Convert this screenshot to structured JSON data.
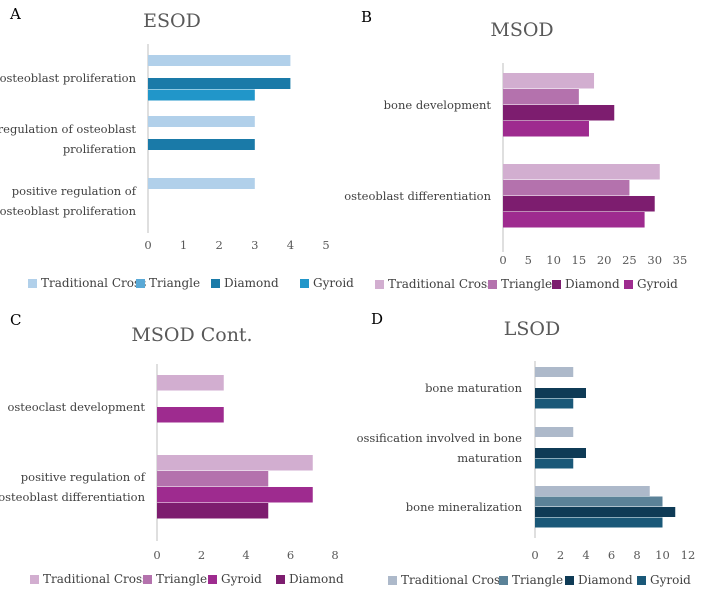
{
  "chart_data": [
    {
      "panel": "A",
      "title": "ESOD",
      "type": "bar",
      "orientation": "horizontal",
      "categories": [
        "osteoblast proliferation",
        "regulation of osteoblast proliferation",
        "positive regulation of osteoblast proliferation"
      ],
      "category_lines": [
        [
          "osteoblast proliferation"
        ],
        [
          "regulation of osteoblast",
          "proliferation"
        ],
        [
          "positive regulation of",
          "osteoblast proliferation"
        ]
      ],
      "series": [
        {
          "name": "Traditional Cross",
          "color": "#b1d0ea",
          "values": [
            4,
            3,
            3
          ]
        },
        {
          "name": "Triangle",
          "color": "#5aa9d6",
          "values": [
            null,
            null,
            null
          ]
        },
        {
          "name": "Diamond",
          "color": "#1a7aa8",
          "values": [
            4,
            3,
            null
          ]
        },
        {
          "name": "Gyroid",
          "color": "#2196c9",
          "values": [
            3,
            null,
            null
          ]
        }
      ],
      "xlim": [
        0,
        5
      ],
      "xticks": [
        "0",
        "1",
        "2",
        "3",
        "4",
        "5"
      ],
      "legend": "bottom"
    },
    {
      "panel": "B",
      "title": "MSOD",
      "type": "bar",
      "orientation": "horizontal",
      "categories": [
        "bone development",
        "osteoblast differentiation"
      ],
      "category_lines": [
        [
          "bone development"
        ],
        [
          "osteoblast differentiation"
        ]
      ],
      "series": [
        {
          "name": "Traditional Cross",
          "color": "#d2aed0",
          "values": [
            18,
            31
          ]
        },
        {
          "name": "Triangle",
          "color": "#b472ad",
          "values": [
            15,
            25
          ]
        },
        {
          "name": "Diamond",
          "color": "#7d1d6f",
          "values": [
            22,
            30
          ]
        },
        {
          "name": "Gyroid",
          "color": "#9e2b8f",
          "values": [
            17,
            28
          ]
        }
      ],
      "xlim": [
        0,
        35
      ],
      "xticks": [
        "0",
        "5",
        "10",
        "15",
        "20",
        "25",
        "30",
        "35"
      ],
      "legend": "bottom"
    },
    {
      "panel": "C",
      "title": "MSOD Cont.",
      "type": "bar",
      "orientation": "horizontal",
      "categories": [
        "osteoclast development",
        "positive regulation of osteoblast differentiation"
      ],
      "category_lines": [
        [
          "osteoclast development"
        ],
        [
          "positive regulation of",
          "osteoblast differentiation"
        ]
      ],
      "series": [
        {
          "name": "Traditional Cross",
          "color": "#d2aed0",
          "values": [
            3,
            7
          ]
        },
        {
          "name": "Triangle",
          "color": "#b472ad",
          "values": [
            null,
            5
          ]
        },
        {
          "name": "Gyroid",
          "color": "#9e2b8f",
          "values": [
            3,
            7
          ]
        },
        {
          "name": "Diamond",
          "color": "#7d1d6f",
          "values": [
            null,
            5
          ]
        }
      ],
      "xlim": [
        0,
        8
      ],
      "xticks": [
        "0",
        "2",
        "4",
        "6",
        "8"
      ],
      "legend": "bottom"
    },
    {
      "panel": "D",
      "title": "LSOD",
      "type": "bar",
      "orientation": "horizontal",
      "categories": [
        "bone maturation",
        "ossification involved in bone maturation",
        "bone mineralization"
      ],
      "category_lines": [
        [
          "bone maturation"
        ],
        [
          "ossification involved in bone",
          "maturation"
        ],
        [
          "bone mineralization"
        ]
      ],
      "series": [
        {
          "name": "Traditional Cross",
          "color": "#adb9ca",
          "values": [
            3,
            3,
            9
          ]
        },
        {
          "name": "Triangle",
          "color": "#5b8298",
          "values": [
            null,
            null,
            10
          ]
        },
        {
          "name": "Diamond",
          "color": "#0f3b56",
          "values": [
            4,
            4,
            11
          ]
        },
        {
          "name": "Gyroid",
          "color": "#1a5878",
          "values": [
            3,
            3,
            10
          ]
        }
      ],
      "xlim": [
        0,
        12
      ],
      "xticks": [
        "0",
        "2",
        "4",
        "6",
        "8",
        "10",
        "12"
      ],
      "legend": "bottom"
    }
  ]
}
